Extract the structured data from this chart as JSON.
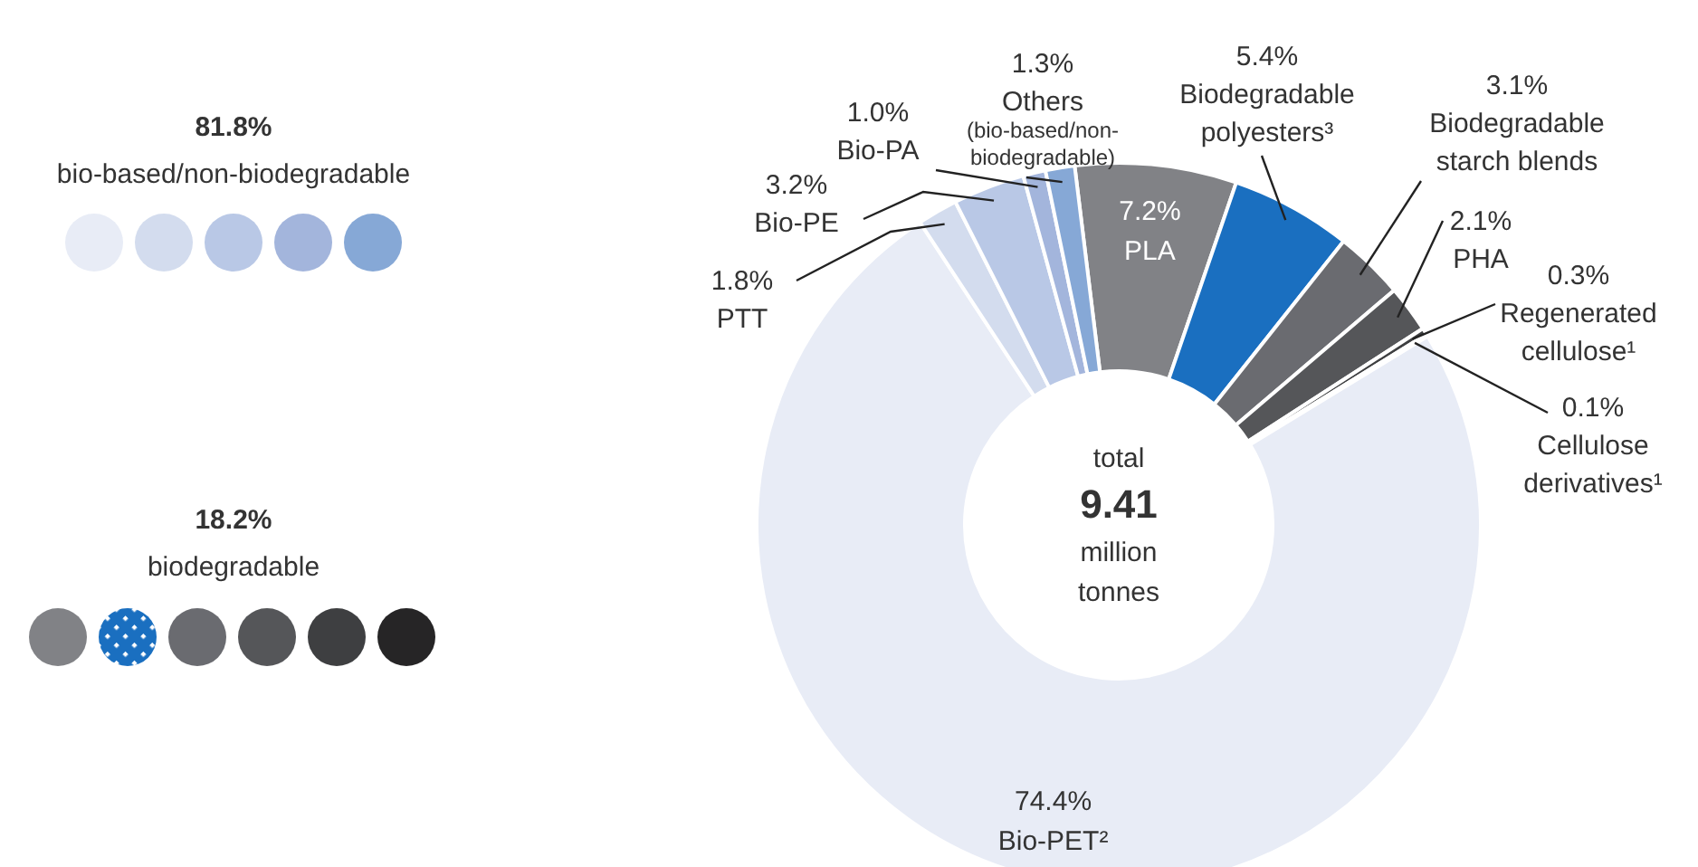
{
  "chart_data": {
    "type": "donut",
    "categories": [
      "PLA",
      "Biodegradable polyesters³",
      "Biodegradable starch blends",
      "PHA",
      "Regenerated cellulose¹",
      "Cellulose derivatives¹",
      "Bio-PET²",
      "PTT",
      "Bio-PE",
      "Bio-PA",
      "Others (bio-based/non-biodegradable)"
    ],
    "values": [
      7.2,
      5.4,
      3.1,
      2.1,
      0.3,
      0.1,
      74.4,
      1.8,
      3.2,
      1.0,
      1.3
    ],
    "value_labels": [
      "7.2%",
      "5.4%",
      "3.1%",
      "2.1%",
      "0.3%",
      "0.1%",
      "74.4%",
      "1.8%",
      "3.2%",
      "1.0%",
      "1.3%"
    ],
    "colors": [
      "#818286",
      "#1a6fc0",
      "#6a6b70",
      "#555659",
      "#3e3f41",
      "#262526",
      "#e8ecf6",
      "#d3dcee",
      "#b9c8e6",
      "#a3b5dc",
      "#86a8d6"
    ],
    "annotations": [
      "81.8%",
      "bio-based/non-biodegradable",
      "18.2%",
      "biodegradable",
      "total",
      "9.41",
      "million tonnes"
    ]
  }
}
